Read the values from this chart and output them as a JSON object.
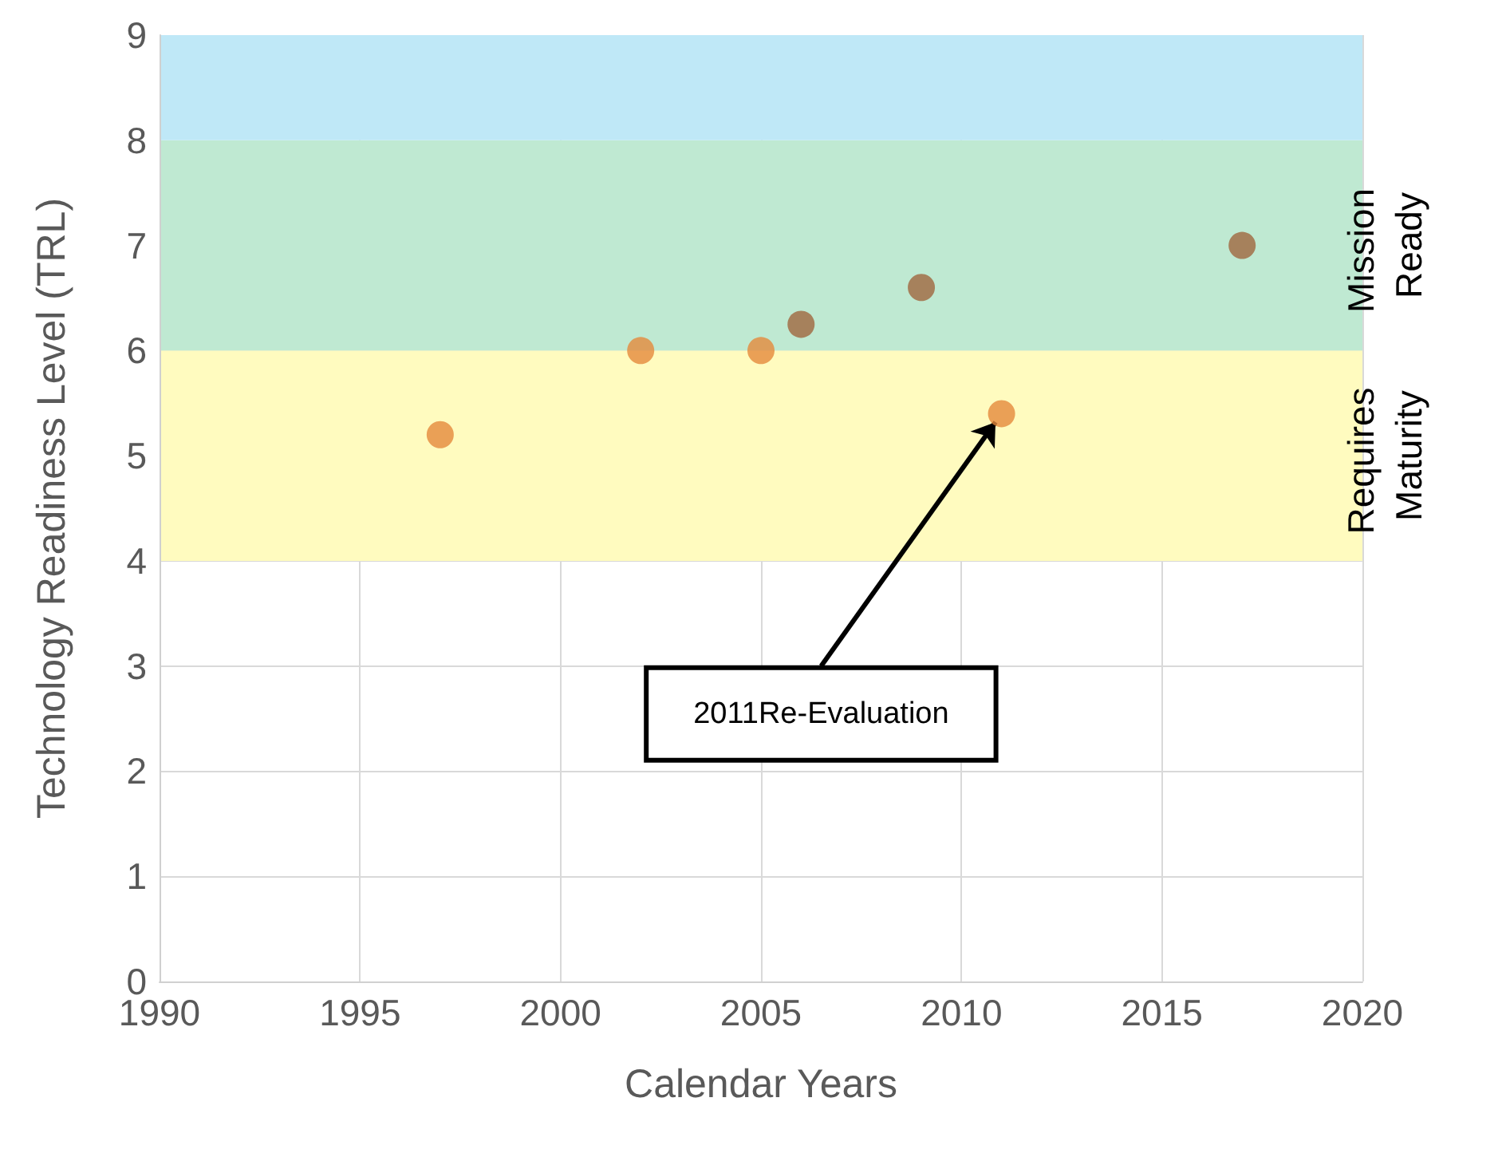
{
  "chart_data": {
    "type": "scatter",
    "xlabel": "Calendar Years",
    "ylabel": "Technology Readiness Level (TRL)",
    "x": [
      1997,
      2002,
      2005,
      2006,
      2009,
      2011,
      2017
    ],
    "values": [
      5.2,
      6.0,
      6.0,
      6.25,
      6.6,
      5.4,
      7.0
    ],
    "colors": [
      "#e58a3c",
      "#e58a3c",
      "#e58a3c",
      "#a0663f",
      "#a0663f",
      "#e58a3c",
      "#a0663f"
    ],
    "marker": "circle",
    "xlim": [
      1990,
      2020
    ],
    "xticks": [
      1990,
      1995,
      2000,
      2005,
      2010,
      2015,
      2020
    ],
    "ylim": [
      0,
      9
    ],
    "yticks": [
      0,
      1,
      2,
      3,
      4,
      5,
      6,
      7,
      8,
      9
    ],
    "grid": true,
    "bands": [
      {
        "axis": "y",
        "from": 4,
        "to": 6,
        "label": "Requires Maturity",
        "color": "#fffbbf"
      },
      {
        "axis": "y",
        "from": 6,
        "to": 8,
        "label": "Mission Ready",
        "color": "#bfe9d2"
      },
      {
        "axis": "y",
        "from": 8,
        "to": 9,
        "label": null,
        "color": "#bfe8f7"
      }
    ],
    "annotations": [
      {
        "text": "2011Re-Evaluation",
        "x": 2011,
        "y": 5.4
      }
    ]
  }
}
